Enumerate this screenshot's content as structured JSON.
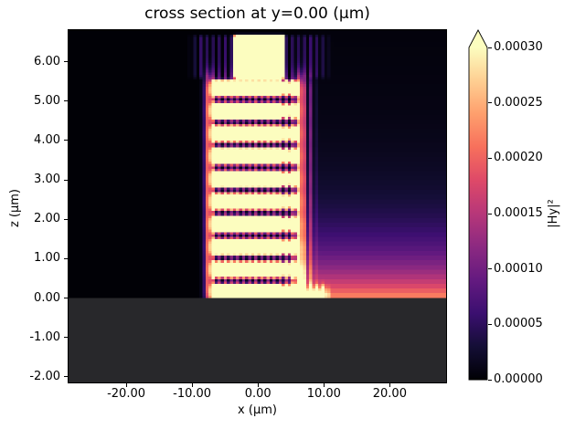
{
  "title": "cross section at y=0.00 (μm)",
  "axes": {
    "xlabel": "x (μm)",
    "ylabel": "z (μm)",
    "x_tick_labels": [
      "-20.00",
      "-10.00",
      "0.00",
      "10.00",
      "20.00"
    ],
    "x_tick_values": [
      -20,
      -10,
      0,
      10,
      20
    ],
    "y_tick_labels": [
      "6.00",
      "5.00",
      "4.00",
      "3.00",
      "2.00",
      "1.00",
      "0.00",
      "-1.00",
      "-2.00"
    ],
    "y_tick_values": [
      6,
      5,
      4,
      3,
      2,
      1,
      0,
      -1,
      -2
    ],
    "xlim": [
      -28.75,
      28.55
    ],
    "ylim": [
      -2.14,
      6.8
    ]
  },
  "colorbar": {
    "label": "|Hy|²",
    "tick_labels": [
      "0.00000",
      "0.00005",
      "0.00010",
      "0.00015",
      "0.00020",
      "0.00025",
      "0.00030"
    ],
    "tick_values": [
      0,
      5e-05,
      0.0001,
      0.00015,
      0.0002,
      0.00025,
      0.0003
    ],
    "vmin": 0,
    "vmax": 0.0003,
    "extend": "max",
    "colormap": "magma",
    "colormap_stops": [
      [
        0.0,
        0,
        0,
        4
      ],
      [
        0.1,
        20,
        14,
        54
      ],
      [
        0.2,
        59,
        15,
        112
      ],
      [
        0.3,
        100,
        26,
        128
      ],
      [
        0.4,
        140,
        41,
        129
      ],
      [
        0.5,
        183,
        55,
        121
      ],
      [
        0.6,
        222,
        73,
        104
      ],
      [
        0.7,
        247,
        112,
        92
      ],
      [
        0.8,
        254,
        159,
        109
      ],
      [
        0.9,
        254,
        207,
        146
      ],
      [
        1.0,
        252,
        253,
        191
      ]
    ]
  },
  "chart_data": {
    "type": "heatmap",
    "title": "cross section at y=0.00 (μm)",
    "xlabel": "x (μm)",
    "ylabel": "z (μm)",
    "legend": "colorbar right, label |Hy|², range 0.00000–0.00030, extended arrow at max",
    "xlim": [
      -28.75,
      28.55
    ],
    "ylim": [
      -2.14,
      6.8
    ],
    "colormap": "magma",
    "vmin": 0,
    "vmax": 0.0003,
    "description": "FDTD |Hy|² field intensity cross section: a vertical stack of ~10 saturated bright horizontal bars centered near x=0 (x≈-7..6) between z=0 and z≈5.5, an input beam column (x≈-4..4) from z≈5.5 to the top, dotted purple diffraction striations flanking the stack, a pink/orange glow filling the right half that brightens toward z=0, a toothed radiating row just above z=0, and a uniform dark grey substrate for z<0.",
    "features": {
      "background_value": 0.004,
      "substrate": {
        "z_top": 0.0,
        "color_rgb": [
          40,
          40,
          43
        ]
      },
      "bars": {
        "count": 10,
        "z_first": 0.15,
        "z_spacing": 0.575,
        "core_half_thickness": 0.19,
        "core_gain": 2.5,
        "x_left": -7.4,
        "x_right": 6.4,
        "edge_soft": 0.7,
        "halo_gain": 0.3,
        "halo_sigma": 0.36,
        "halo_x_left": -8.8,
        "halo_x_right": 9.5,
        "halo_edge_soft": 1.8,
        "end_blob_gain": 0.55,
        "end_blob_sigma": 0.7,
        "right_chop_x": 3.0
      },
      "beam": {
        "x_left": -3.9,
        "x_right": 4.3,
        "edge_soft": 0.7,
        "z_bottom": 5.5,
        "z_top": 6.72,
        "gain": 2.6,
        "halo_gain": 0.18,
        "halo_x_left": -11.0,
        "halo_x_right": 11.5,
        "halo_edge_soft": 2.5
      },
      "right_glow": {
        "gain": 0.62,
        "z_decay": 1.05,
        "x_start": 3.0,
        "x_soft": 4.0,
        "gain2": 0.1,
        "z_decay2": 3.0,
        "z_quantize": 0.12
      },
      "grating_teeth": {
        "z_center": 0.1,
        "z_sigma": 0.17,
        "gain": 1.7,
        "x_left": -7.5,
        "x_right": 11.0,
        "edge_soft": 1.2
      },
      "stripe_min": 0.3,
      "grid": {
        "nx": 124,
        "nz": 150
      }
    }
  }
}
